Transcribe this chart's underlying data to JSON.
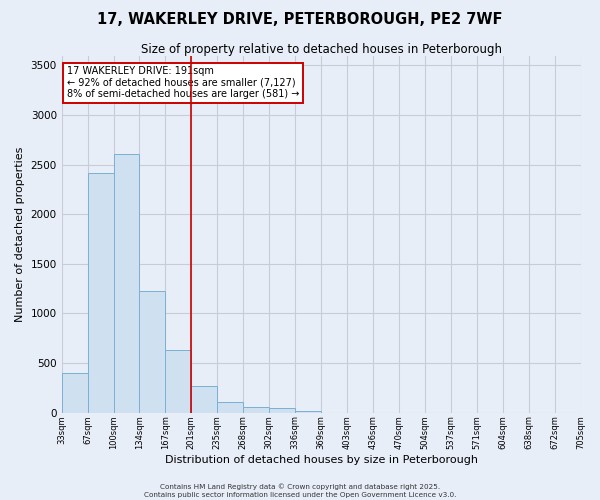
{
  "title_line1": "17, WAKERLEY DRIVE, PETERBOROUGH, PE2 7WF",
  "title_line2": "Size of property relative to detached houses in Peterborough",
  "xlabel": "Distribution of detached houses by size in Peterborough",
  "ylabel": "Number of detached properties",
  "bins": [
    "33sqm",
    "67sqm",
    "100sqm",
    "134sqm",
    "167sqm",
    "201sqm",
    "235sqm",
    "268sqm",
    "302sqm",
    "336sqm",
    "369sqm",
    "403sqm",
    "436sqm",
    "470sqm",
    "504sqm",
    "537sqm",
    "571sqm",
    "604sqm",
    "638sqm",
    "672sqm",
    "705sqm"
  ],
  "values": [
    400,
    2420,
    2610,
    1230,
    635,
    265,
    110,
    60,
    50,
    20,
    0,
    0,
    0,
    0,
    0,
    0,
    0,
    0,
    0,
    0
  ],
  "bar_color": "#cfe0f0",
  "bar_edge_color": "#7ab0d4",
  "vline_x": 5,
  "vline_color": "#cc0000",
  "annotation_text": "17 WAKERLEY DRIVE: 191sqm\n← 92% of detached houses are smaller (7,127)\n8% of semi-detached houses are larger (581) →",
  "annotation_box_color": "white",
  "annotation_box_edge": "#cc0000",
  "ylim": [
    0,
    3600
  ],
  "yticks": [
    0,
    500,
    1000,
    1500,
    2000,
    2500,
    3000,
    3500
  ],
  "plot_bg_color": "#e8eef8",
  "fig_bg_color": "#e8eef8",
  "grid_color": "#c8ccd8",
  "footer": "Contains HM Land Registry data © Crown copyright and database right 2025.\nContains public sector information licensed under the Open Government Licence v3.0."
}
